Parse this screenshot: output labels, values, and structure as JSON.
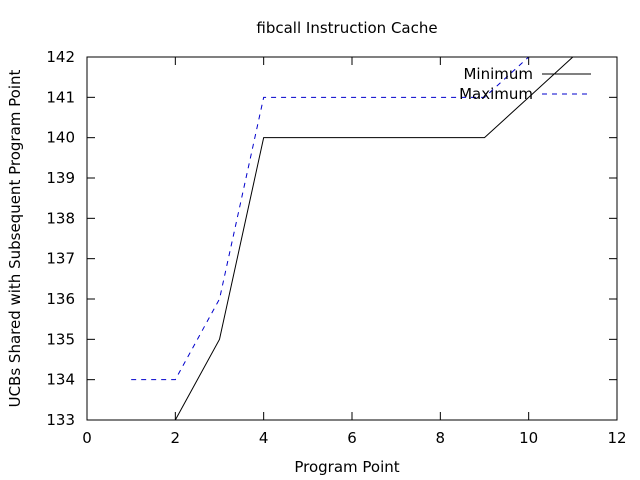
{
  "chart_data": {
    "type": "line",
    "title": "fibcall Instruction Cache",
    "xlabel": "Program Point",
    "ylabel": "UCBs Shared with Subsequent Program Point",
    "xlim": [
      0,
      12
    ],
    "ylim": [
      133,
      142
    ],
    "xticks": [
      0,
      2,
      4,
      6,
      8,
      10,
      12
    ],
    "yticks": [
      133,
      134,
      135,
      136,
      137,
      138,
      139,
      140,
      141,
      142
    ],
    "grid": false,
    "legend_position": "top-right",
    "series": [
      {
        "name": "Minimum",
        "style": "solid",
        "color": "#000000",
        "x": [
          1,
          2,
          3,
          4,
          5,
          6,
          7,
          8,
          9,
          10,
          11
        ],
        "y": [
          133,
          133,
          135,
          140,
          140,
          140,
          140,
          140,
          140,
          141,
          142
        ]
      },
      {
        "name": "Maximum",
        "style": "dashed",
        "color": "#0000cc",
        "x": [
          1,
          2,
          3,
          4,
          5,
          6,
          7,
          8,
          9,
          10
        ],
        "y": [
          134,
          134,
          136,
          141,
          141,
          141,
          141,
          141,
          141,
          142
        ]
      }
    ]
  }
}
